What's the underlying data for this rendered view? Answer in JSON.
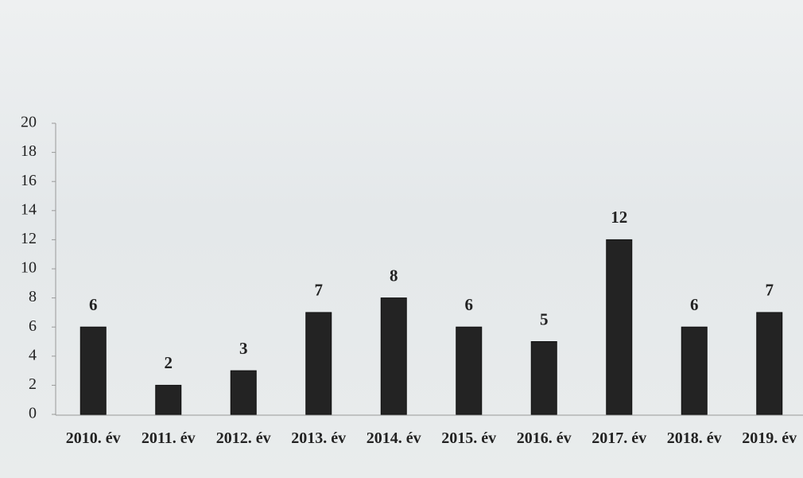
{
  "chart_data": {
    "type": "bar",
    "categories": [
      "2010. év",
      "2011. év",
      "2012. év",
      "2013. év",
      "2014. év",
      "2015. év",
      "2016. év",
      "2017. év",
      "2018. év",
      "2019. év"
    ],
    "values": [
      6,
      2,
      3,
      7,
      8,
      6,
      5,
      12,
      6,
      7
    ],
    "color": "#232323",
    "ylim": [
      0,
      20
    ],
    "yticks": [
      0,
      2,
      4,
      6,
      8,
      10,
      12,
      14,
      16,
      18,
      20
    ],
    "grid": false
  }
}
